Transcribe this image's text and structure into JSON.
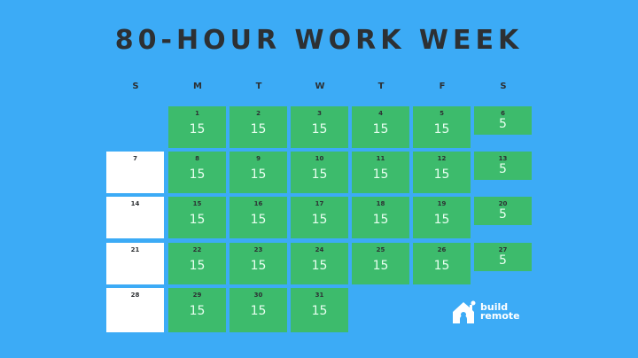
{
  "title": "80-HOUR WORK WEEK",
  "days_of_week": [
    "S",
    "M",
    "T",
    "W",
    "T",
    "F",
    "S"
  ],
  "colors": {
    "background": "#3cabf6",
    "work_day": "#3dbb6c",
    "off_day": "#ffffff"
  },
  "weeks": [
    [
      null,
      {
        "day": "1",
        "hours": "15"
      },
      {
        "day": "2",
        "hours": "15"
      },
      {
        "day": "3",
        "hours": "15"
      },
      {
        "day": "4",
        "hours": "15"
      },
      {
        "day": "5",
        "hours": "15"
      },
      {
        "day": "6",
        "hours": "5"
      }
    ],
    [
      {
        "day": "7",
        "hours": ""
      },
      {
        "day": "8",
        "hours": "15"
      },
      {
        "day": "9",
        "hours": "15"
      },
      {
        "day": "10",
        "hours": "15"
      },
      {
        "day": "11",
        "hours": "15"
      },
      {
        "day": "12",
        "hours": "15"
      },
      {
        "day": "13",
        "hours": "5"
      }
    ],
    [
      {
        "day": "14",
        "hours": ""
      },
      {
        "day": "15",
        "hours": "15"
      },
      {
        "day": "16",
        "hours": "15"
      },
      {
        "day": "17",
        "hours": "15"
      },
      {
        "day": "18",
        "hours": "15"
      },
      {
        "day": "19",
        "hours": "15"
      },
      {
        "day": "20",
        "hours": "5"
      }
    ],
    [
      {
        "day": "21",
        "hours": ""
      },
      {
        "day": "22",
        "hours": "15"
      },
      {
        "day": "23",
        "hours": "15"
      },
      {
        "day": "24",
        "hours": "15"
      },
      {
        "day": "25",
        "hours": "15"
      },
      {
        "day": "26",
        "hours": "15"
      },
      {
        "day": "27",
        "hours": "5"
      }
    ],
    [
      {
        "day": "28",
        "hours": ""
      },
      {
        "day": "29",
        "hours": "15"
      },
      {
        "day": "30",
        "hours": "15"
      },
      {
        "day": "31",
        "hours": "15"
      },
      null,
      null,
      null
    ]
  ],
  "logo": {
    "line1": "build",
    "line2": "remote"
  }
}
